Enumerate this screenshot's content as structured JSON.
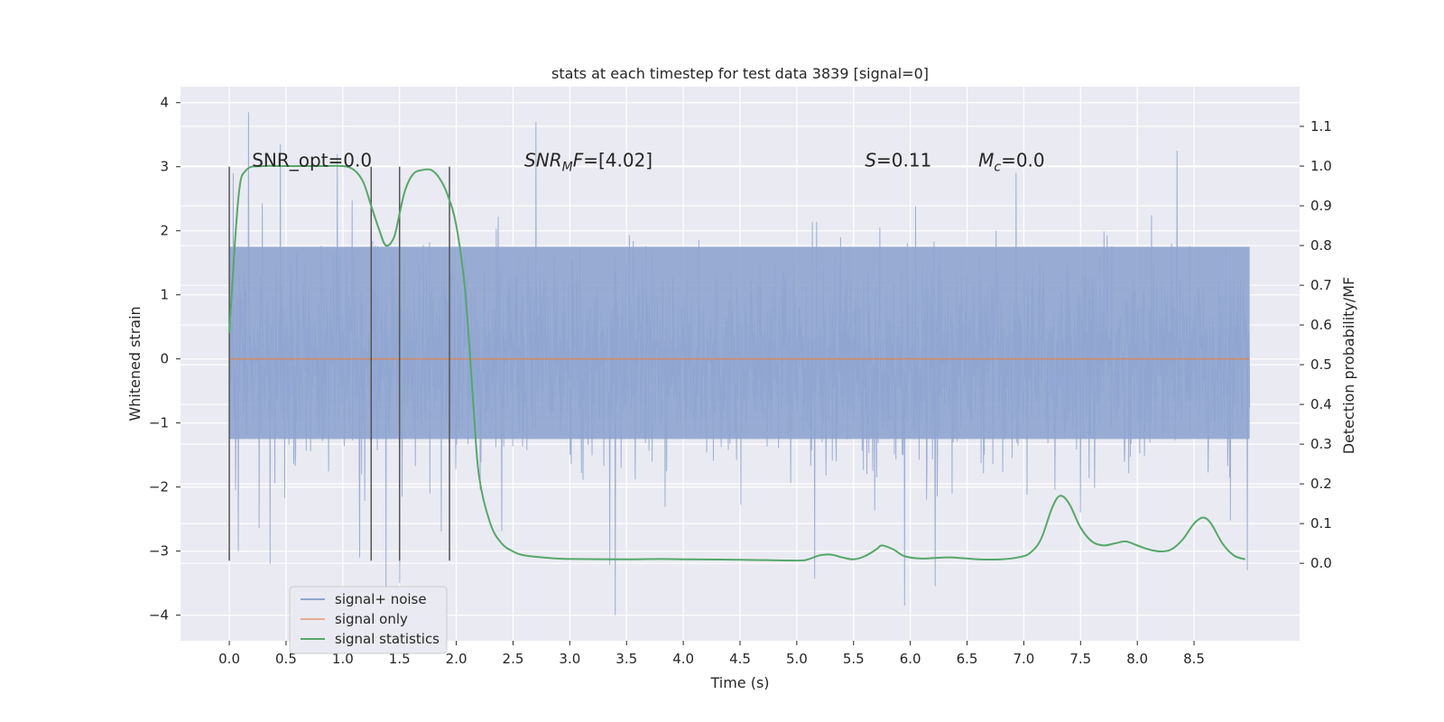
{
  "chart_data": {
    "type": "line",
    "title": "stats at each timestep for test data 3839 [signal=0]",
    "xlabel": "Time (s)",
    "ylabel_left": "Whitened strain",
    "ylabel_right": "Detection probability/MF",
    "xlim": [
      -0.43,
      9.43
    ],
    "ylim_left": [
      -4.4,
      4.25
    ],
    "ylim_right": [
      -0.195,
      1.2
    ],
    "grid": true,
    "legend_position": "lower-left",
    "x_ticks": [
      0.0,
      0.5,
      1.0,
      1.5,
      2.0,
      2.5,
      3.0,
      3.5,
      4.0,
      4.5,
      5.0,
      5.5,
      6.0,
      6.5,
      7.0,
      7.5,
      8.0,
      8.5
    ],
    "x_tick_labels": [
      "0.0",
      "0.5",
      "1.0",
      "1.5",
      "2.0",
      "2.5",
      "3.0",
      "3.5",
      "4.0",
      "4.5",
      "5.0",
      "5.5",
      "6.0",
      "6.5",
      "7.0",
      "7.5",
      "8.0",
      "8.5"
    ],
    "y_left_ticks": [
      4,
      3,
      2,
      1,
      0,
      -1,
      -2,
      -3,
      -4
    ],
    "y_left_tick_labels": [
      "4",
      "3",
      "2",
      "1",
      "0",
      "−1",
      "−2",
      "−3",
      "−4"
    ],
    "y_right_ticks": [
      1.1,
      1.0,
      0.9,
      0.8,
      0.7,
      0.6,
      0.5,
      0.4,
      0.3,
      0.2,
      0.1,
      0.0
    ],
    "y_right_tick_labels": [
      "1.1",
      "1.0",
      "0.9",
      "0.8",
      "0.7",
      "0.6",
      "0.5",
      "0.4",
      "0.3",
      "0.2",
      "0.1",
      "0.0"
    ],
    "annotations": [
      {
        "base": "SNR_opt=0.0",
        "sub": "",
        "suffix": "",
        "x": 0.2,
        "y": 3.0
      },
      {
        "base": "SNR",
        "sub": "M",
        "suffix": "F=[4.02]",
        "x": 2.6,
        "y": 3.0
      },
      {
        "base": "S",
        "sub": "",
        "suffix": "=0.11",
        "x": 5.6,
        "y": 3.0
      },
      {
        "base": "M",
        "sub": "c",
        "suffix": "=0.0",
        "x": 6.6,
        "y": 3.0
      }
    ],
    "vlines": {
      "x": [
        0.0,
        1.25,
        1.5,
        1.94
      ],
      "y_range": [
        -3.15,
        3.0
      ]
    },
    "series": [
      {
        "name": "signal+ noise",
        "color": "#8fa5cf",
        "axis": "left",
        "x_range": [
          0.0,
          8.99
        ],
        "core_band": [
          -1.25,
          1.75
        ],
        "peak_points": [
          {
            "x": 0.17,
            "y": 3.85
          },
          {
            "x": 0.45,
            "y": 3.35
          },
          {
            "x": 0.95,
            "y": 3.2
          },
          {
            "x": 1.38,
            "y": -3.6
          },
          {
            "x": 1.5,
            "y": -3.5
          },
          {
            "x": 2.7,
            "y": 3.7
          },
          {
            "x": 3.4,
            "y": -4.0
          },
          {
            "x": 5.95,
            "y": -3.85
          },
          {
            "x": 6.22,
            "y": -3.55
          },
          {
            "x": 8.35,
            "y": 3.25
          },
          {
            "x": 0.36,
            "y": -3.2
          },
          {
            "x": 8.97,
            "y": -3.3
          },
          {
            "x": 0.08,
            "y": -3.0
          },
          {
            "x": 1.15,
            "y": -3.1
          }
        ]
      },
      {
        "name": "signal only",
        "color": "#dd8452",
        "axis": "left",
        "x": [
          0.0,
          8.99
        ],
        "y": [
          0.0,
          0.0
        ]
      },
      {
        "name": "signal statistics",
        "color": "#55a868",
        "axis": "right",
        "x": [
          0.0,
          0.08,
          0.15,
          0.3,
          0.5,
          0.8,
          1.0,
          1.1,
          1.18,
          1.25,
          1.32,
          1.38,
          1.45,
          1.5,
          1.55,
          1.62,
          1.7,
          1.78,
          1.85,
          1.92,
          2.0,
          2.08,
          2.15,
          2.2,
          2.3,
          2.4,
          2.5,
          2.6,
          2.8,
          3.0,
          3.5,
          3.8,
          4.0,
          4.5,
          5.0,
          5.1,
          5.2,
          5.3,
          5.4,
          5.5,
          5.6,
          5.7,
          5.75,
          5.85,
          5.95,
          6.1,
          6.35,
          6.6,
          6.8,
          6.95,
          7.05,
          7.15,
          7.25,
          7.32,
          7.4,
          7.5,
          7.6,
          7.7,
          7.8,
          7.9,
          8.0,
          8.1,
          8.2,
          8.3,
          8.4,
          8.5,
          8.58,
          8.65,
          8.75,
          8.85,
          8.95
        ],
        "y": [
          0.58,
          0.92,
          0.99,
          1.0,
          1.0,
          1.0,
          1.0,
          0.99,
          0.96,
          0.9,
          0.84,
          0.8,
          0.82,
          0.88,
          0.94,
          0.98,
          0.99,
          0.99,
          0.97,
          0.93,
          0.85,
          0.68,
          0.4,
          0.22,
          0.1,
          0.05,
          0.03,
          0.02,
          0.014,
          0.011,
          0.01,
          0.011,
          0.01,
          0.009,
          0.007,
          0.01,
          0.02,
          0.022,
          0.015,
          0.01,
          0.018,
          0.035,
          0.045,
          0.035,
          0.018,
          0.012,
          0.015,
          0.01,
          0.01,
          0.015,
          0.025,
          0.06,
          0.14,
          0.17,
          0.15,
          0.09,
          0.055,
          0.045,
          0.05,
          0.055,
          0.045,
          0.035,
          0.03,
          0.035,
          0.06,
          0.1,
          0.115,
          0.1,
          0.05,
          0.02,
          0.01
        ]
      }
    ]
  },
  "legend": {
    "items": [
      {
        "label": "signal+ noise",
        "color": "#8fa5cf"
      },
      {
        "label": "signal only",
        "color": "#dd8452"
      },
      {
        "label": "signal statistics",
        "color": "#55a868"
      }
    ]
  },
  "colors": {
    "plot_background": "#eaeaf2",
    "grid": "#ffffff",
    "vline": "#555555"
  }
}
